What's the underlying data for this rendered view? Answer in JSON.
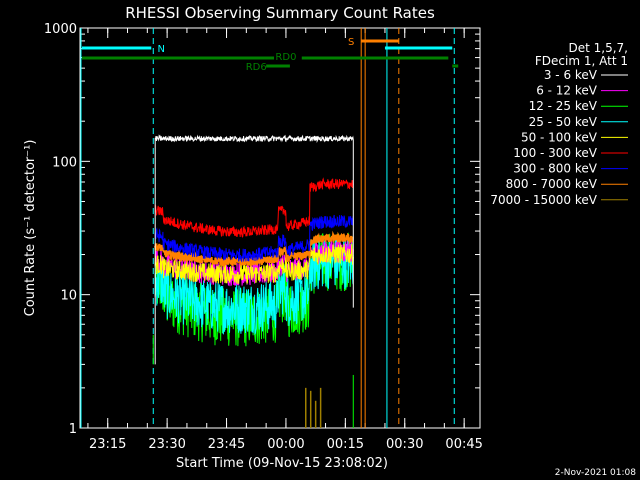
{
  "chart_data": {
    "type": "line",
    "title": "RHESSI Observing Summary Count Rates",
    "xlabel": "Start Time (09-Nov-15 23:08:02)",
    "ylabel": "Count Rate (s⁻¹ detector⁻¹)",
    "y_scale": "log",
    "ylim": [
      1,
      1000
    ],
    "xlim": [
      "23:08",
      "00:49"
    ],
    "x_ticks": [
      "23:15",
      "23:30",
      "23:45",
      "00:00",
      "00:15",
      "00:30",
      "00:45"
    ],
    "y_ticks": [
      "1",
      "10",
      "100",
      "1000"
    ],
    "legend_header": [
      "Det 1,5,7,",
      "FDecim 1, Att 1"
    ],
    "legend_position": "right",
    "series": [
      {
        "name": "3 - 6 keV",
        "color": "#ffffff",
        "x_start": "23:27",
        "x_end": "00:17",
        "level": 148
      },
      {
        "name": "6 - 12 keV",
        "color": "#ff00ff",
        "x_start": "23:27",
        "x_end": "00:17",
        "level": 17
      },
      {
        "name": "12 - 25 keV",
        "color": "#00ff00",
        "x_start": "23:27",
        "x_end": "00:17",
        "level": 10
      },
      {
        "name": "25 - 50 keV",
        "color": "#00ffff",
        "x_start": "23:27",
        "x_end": "00:17",
        "level": 11
      },
      {
        "name": "50 - 100 keV",
        "color": "#ffff00",
        "x_start": "23:27",
        "x_end": "00:17",
        "level": 16
      },
      {
        "name": "100 - 300 keV",
        "color": "#ff0000",
        "x_start": "23:27",
        "x_end": "00:17",
        "level": 38
      },
      {
        "name": "300 - 800 keV",
        "color": "#0000ff",
        "x_start": "23:27",
        "x_end": "00:17",
        "level": 25
      },
      {
        "name": "800 - 7000 keV",
        "color": "#ff8000",
        "x_start": "23:27",
        "x_end": "00:17",
        "level": 21
      },
      {
        "name": "7000 - 15000 keV",
        "color": "#a08000",
        "x_start": "23:27",
        "x_end": "00:17",
        "level": 1.3
      }
    ],
    "flag_bars": [
      {
        "label": "N",
        "color": "#00ffff"
      },
      {
        "label": "S",
        "color": "#ff8000"
      },
      {
        "label": "RD0",
        "color": "#008000"
      },
      {
        "label": "RD6",
        "color": "#008000"
      }
    ],
    "footer": "2-Nov-2021 01:08"
  }
}
